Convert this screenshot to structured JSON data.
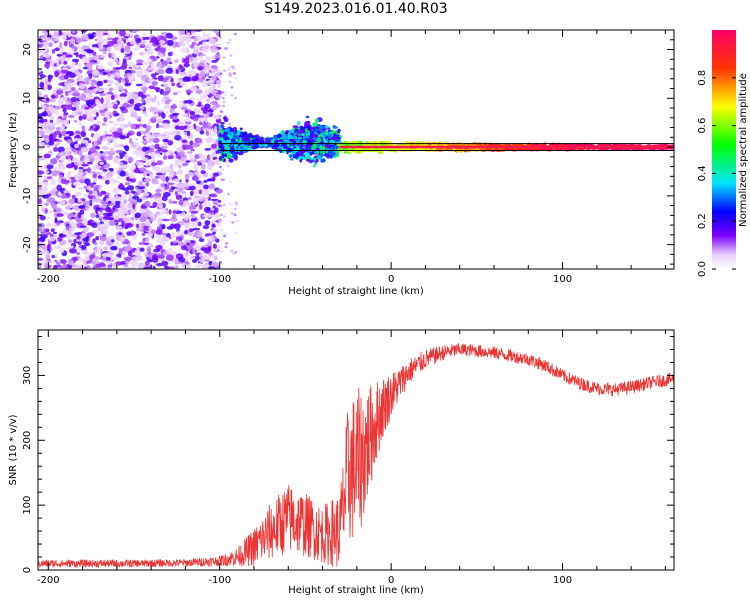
{
  "title": "S149.2023.016.01.40.R03",
  "chart_data": [
    {
      "type": "heatmap",
      "title": "S149.2023.016.01.40.R03",
      "xlabel": "Height of straight line (km)",
      "ylabel": "Frequency (Hz)",
      "xlim": [
        -206,
        165
      ],
      "ylim": [
        -25,
        24
      ],
      "xticks": [
        -200,
        -100,
        0,
        100
      ],
      "yticks": [
        -20,
        -10,
        0,
        10,
        20
      ],
      "colorbar": {
        "label": "Normalized spectral amplitude",
        "range": [
          0,
          1
        ],
        "ticks": [
          "0.0",
          "0.2",
          "0.4",
          "0.6",
          "0.8"
        ],
        "colormap": [
          "#ffffff",
          "#7a00ff",
          "#0000ff",
          "#00e5ff",
          "#00ff00",
          "#ffff00",
          "#ff3300",
          "#ff0066"
        ]
      },
      "regions": [
        {
          "x_range": [
            -206,
            -100
          ],
          "description": "scattered noise",
          "amplitude_range": [
            0.05,
            0.2
          ]
        },
        {
          "x_range": [
            -100,
            -30
          ],
          "description": "signal line with broadened spread",
          "center_freq": 1,
          "spread_hz": 4,
          "amplitude_range": [
            0.15,
            0.5
          ]
        },
        {
          "x_range": [
            -30,
            165
          ],
          "description": "narrow carrier line",
          "center_freq": 0,
          "spread_hz": 1,
          "amplitude_range": [
            0.5,
            1.0
          ]
        }
      ],
      "reference_lines_hz": [
        -0.7,
        0.7
      ]
    },
    {
      "type": "line",
      "xlabel": "Height of straight line (km)",
      "ylabel": "SNR (10 * v/v)",
      "xlim": [
        -206,
        165
      ],
      "ylim": [
        0,
        370
      ],
      "xticks": [
        -200,
        -100,
        0,
        100
      ],
      "yticks": [
        0,
        100,
        200,
        300
      ],
      "color": "#ee3333",
      "x": [
        -206,
        -180,
        -150,
        -120,
        -100,
        -90,
        -80,
        -70,
        -60,
        -50,
        -40,
        -30,
        -25,
        -20,
        -15,
        -10,
        -5,
        0,
        10,
        20,
        30,
        40,
        50,
        60,
        70,
        80,
        90,
        100,
        110,
        120,
        130,
        140,
        150,
        165
      ],
      "values": [
        10,
        10,
        10,
        11,
        14,
        20,
        35,
        60,
        80,
        70,
        55,
        60,
        150,
        160,
        185,
        220,
        250,
        270,
        305,
        325,
        335,
        340,
        338,
        335,
        330,
        325,
        315,
        300,
        288,
        280,
        278,
        282,
        288,
        295
      ],
      "noise_amplitude": [
        6,
        6,
        6,
        6,
        8,
        14,
        30,
        45,
        55,
        50,
        45,
        60,
        110,
        120,
        100,
        70,
        50,
        35,
        20,
        15,
        12,
        10,
        10,
        10,
        10,
        10,
        10,
        10,
        10,
        10,
        10,
        10,
        10,
        10
      ]
    }
  ]
}
